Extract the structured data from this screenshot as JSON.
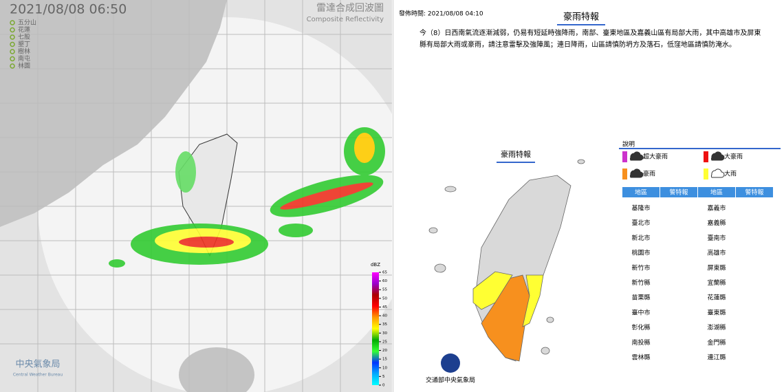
{
  "radar": {
    "timestamp": "2021/08/08 06:50",
    "title": "雷達合成回波圖",
    "subtitle": "Composite Reflectivity",
    "stations": [
      "五分山",
      "花蓮",
      "七股",
      "墾丁",
      "樹林",
      "南屯",
      "林園"
    ],
    "colorbar": {
      "unit": "dBZ",
      "ticks": [
        65,
        60,
        55,
        50,
        45,
        40,
        35,
        30,
        25,
        20,
        15,
        10,
        5,
        0
      ]
    },
    "agency": "中央氣象局",
    "agency_en": "Central Weather Bureau"
  },
  "warning": {
    "issued": "發佈時間: 2021/08/08 04:10",
    "title": "豪雨特報",
    "text": "今（8）日西南氣流逐漸減弱，仍易有短延時強降雨，南部、臺東地區及嘉義山區有局部大雨，其中高雄市及屏東縣有局部大雨或豪雨，請注意雷擊及強陣風；連日降雨，山區請慎防坍方及落石，低窪地區請慎防淹水。",
    "map_label": "豪雨特報",
    "legend": {
      "title": "說明",
      "levels": [
        {
          "name": "超大豪雨",
          "color": "#cc33cc"
        },
        {
          "name": "大豪雨",
          "color": "#ee1111"
        },
        {
          "name": "豪雨",
          "color": "#f7901e"
        },
        {
          "name": "大雨",
          "color": "#ffff33"
        }
      ]
    },
    "table_headers": [
      "地區",
      "警特報",
      "地區",
      "警特報"
    ],
    "regions": [
      {
        "name": "基隆市"
      },
      {
        "name": "臺北市"
      },
      {
        "name": "新北市"
      },
      {
        "name": "桃園市"
      },
      {
        "name": "新竹市"
      },
      {
        "name": "新竹縣"
      },
      {
        "name": "苗栗縣"
      },
      {
        "name": "臺中市"
      },
      {
        "name": "彰化縣"
      },
      {
        "name": "南投縣"
      },
      {
        "name": "雲林縣"
      },
      {
        "name": "嘉義市"
      },
      {
        "name": "嘉義縣",
        "level": "大雨"
      },
      {
        "name": "臺南市",
        "level": "大雨"
      },
      {
        "name": "高雄市",
        "level": "豪雨"
      },
      {
        "name": "屏東縣",
        "level": "豪雨"
      },
      {
        "name": "宜蘭縣"
      },
      {
        "name": "花蓮縣"
      },
      {
        "name": "臺東縣",
        "level": "大雨"
      },
      {
        "name": "澎湖縣"
      },
      {
        "name": "金門縣"
      },
      {
        "name": "連江縣"
      }
    ],
    "footer": "交通部中央氣象局"
  }
}
